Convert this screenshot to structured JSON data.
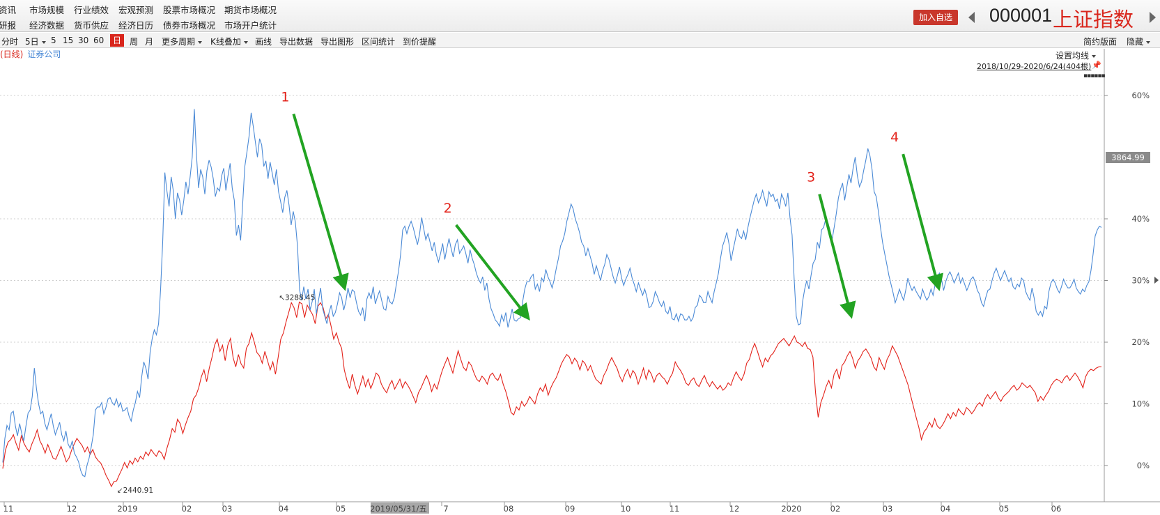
{
  "menu": [
    [
      "资讯",
      "市场规模",
      "行业绩效",
      "宏观预测",
      "股票市场概况",
      "期货市场概况"
    ],
    [
      "研报",
      "经济数据",
      "货币供应",
      "经济日历",
      "债券市场概况",
      "市场开户统计"
    ]
  ],
  "header": {
    "add_button": "加入自选",
    "code": "000001",
    "name": "上证指数"
  },
  "toolbar": {
    "items": [
      "分时",
      "5日",
      "5",
      "15",
      "30",
      "60",
      "日",
      "周",
      "月",
      "更多周期",
      "K线叠加",
      "画线",
      "导出数据",
      "导出图形",
      "区间统计",
      "到价提醒"
    ],
    "active": "日",
    "right_items": [
      "简约版面",
      "隐藏"
    ]
  },
  "legend": {
    "period": "(日线)",
    "overlay": "证券公司"
  },
  "chart_controls": {
    "ma_label": "设置均线",
    "range": "2018/10/29-2020/6/24(404根)"
  },
  "chart_data": {
    "type": "line",
    "ylabel_side": "right",
    "yticks": [
      "60%",
      "40%",
      "30%",
      "20%",
      "10%",
      "0%"
    ],
    "ylim": [
      -4,
      66
    ],
    "xticks": [
      "11",
      "12",
      "2019",
      "02",
      "03",
      "04",
      "05",
      "2019/05/31/五",
      "7",
      "08",
      "09",
      "10",
      "11",
      "12",
      "2020",
      "02",
      "03",
      "04",
      "05",
      "06"
    ],
    "grid": true,
    "price_label": "3864.99",
    "series": [
      {
        "name": "上证指数",
        "color": "#e3221a",
        "y": [
          -0.5,
          2.5,
          3.8,
          4.2,
          5.0,
          3.6,
          2.5,
          4.8,
          3.6,
          2.8,
          2.2,
          3.5,
          4.5,
          5.8,
          4.0,
          3.2,
          2.0,
          3.4,
          2.3,
          1.2,
          1.0,
          2.0,
          3.1,
          1.9,
          0.6,
          1.2,
          2.5,
          3.5,
          4.4,
          3.8,
          3.2,
          2.2,
          3.0,
          1.8,
          2.6,
          1.4,
          0.8,
          0.4,
          -0.5,
          -1.6,
          -2.4,
          -3.4,
          -2.6,
          -2.5,
          -1.5,
          -0.6,
          0.5,
          -0.4,
          0.8,
          0.2,
          1.2,
          0.6,
          1.5,
          1.0,
          2.2,
          1.6,
          2.6,
          2.0,
          1.5,
          2.4,
          2.0,
          1.0,
          2.8,
          4.2,
          6.0,
          5.4,
          7.5,
          6.8,
          5.2,
          6.6,
          7.8,
          8.8,
          10.8,
          11.4,
          12.6,
          14.4,
          15.5,
          13.6,
          15.8,
          17.5,
          19.5,
          20.5,
          18.5,
          19.5,
          17.0,
          19.5,
          20.6,
          17.5,
          16.0,
          18.0,
          16.5,
          15.8,
          19.0,
          19.8,
          21.5,
          20.0,
          18.3,
          17.8,
          16.6,
          18.5,
          17.0,
          15.5,
          16.8,
          14.8,
          17.5,
          20.5,
          21.5,
          23.3,
          24.8,
          26.4,
          25.6,
          24.0,
          26.5,
          26.2,
          24.0,
          26.0,
          25.2,
          24.5,
          23.0,
          25.8,
          26.4,
          25.6,
          23.8,
          24.5,
          22.6,
          20.5,
          21.5,
          20.0,
          19.0,
          15.5,
          13.8,
          12.5,
          14.8,
          13.0,
          11.6,
          13.0,
          14.5,
          12.8,
          14.0,
          12.5,
          13.6,
          15.0,
          14.6,
          13.2,
          12.4,
          11.8,
          13.0,
          13.8,
          12.4,
          13.2,
          14.0,
          12.6,
          13.6,
          13.0,
          12.2,
          11.2,
          10.2,
          11.8,
          12.6,
          13.6,
          14.6,
          13.6,
          12.0,
          13.2,
          12.4,
          14.0,
          15.4,
          16.5,
          17.5,
          16.2,
          15.0,
          16.8,
          18.6,
          17.2,
          15.9,
          15.4,
          16.8,
          16.2,
          15.0,
          14.0,
          13.6,
          14.5,
          14.0,
          13.2,
          14.6,
          15.0,
          14.2,
          13.8,
          14.8,
          13.2,
          12.0,
          10.4,
          8.6,
          8.2,
          9.5,
          9.0,
          10.4,
          9.6,
          10.2,
          11.2,
          10.6,
          10.0,
          11.6,
          12.6,
          12.0,
          13.2,
          11.4,
          12.6,
          13.5,
          14.2,
          15.3,
          16.5,
          17.3,
          18.0,
          17.6,
          16.5,
          17.4,
          16.8,
          15.5,
          17.0,
          16.5,
          15.4,
          16.2,
          15.0,
          14.0,
          13.6,
          13.2,
          14.6,
          15.4,
          16.6,
          17.5,
          16.6,
          15.8,
          14.5,
          13.6,
          14.8,
          15.6,
          14.2,
          15.4,
          14.8,
          13.2,
          14.4,
          15.8,
          14.0,
          15.5,
          14.8,
          13.5,
          14.6,
          15.0,
          14.4,
          14.0,
          13.2,
          14.2,
          15.0,
          16.8,
          16.0,
          15.4,
          14.6,
          13.4,
          13.0,
          13.8,
          14.2,
          13.2,
          12.8,
          13.8,
          14.6,
          13.5,
          12.8,
          13.6,
          13.0,
          12.4,
          13.0,
          12.2,
          12.6,
          13.4,
          13.0,
          14.2,
          15.2,
          14.4,
          13.8,
          14.8,
          16.6,
          17.2,
          18.7,
          19.8,
          18.6,
          17.2,
          16.0,
          17.4,
          16.8,
          17.8,
          18.2,
          19.0,
          19.8,
          20.2,
          20.6,
          20.0,
          19.4,
          20.2,
          21.0,
          20.0,
          19.8,
          19.3,
          20.0,
          19.0,
          18.8,
          17.6,
          11.8,
          7.8,
          10.2,
          11.4,
          12.8,
          13.8,
          12.6,
          14.8,
          15.6,
          14.0,
          16.2,
          16.8,
          17.8,
          18.5,
          17.4,
          15.8,
          17.0,
          17.6,
          18.5,
          18.9,
          18.2,
          17.4,
          16.0,
          15.4,
          17.5,
          16.5,
          15.6,
          17.2,
          18.0,
          19.4,
          18.6,
          17.8,
          16.6,
          15.4,
          14.2,
          13.0,
          11.2,
          9.5,
          7.8,
          6.2,
          4.2,
          5.5,
          6.0,
          7.0,
          6.2,
          7.6,
          6.4,
          6.0,
          6.6,
          7.4,
          8.4,
          7.6,
          8.6,
          8.0,
          9.2,
          8.6,
          8.2,
          9.4,
          9.0,
          8.4,
          9.0,
          9.8,
          10.2,
          9.6,
          10.8,
          11.5,
          10.8,
          11.4,
          12.0,
          11.0,
          10.4,
          11.2,
          11.6,
          12.0,
          12.6,
          13.0,
          12.2,
          12.6,
          13.4,
          13.0,
          12.6,
          13.0,
          12.4,
          11.8,
          10.4,
          11.2,
          10.6,
          11.4,
          12.0,
          13.0,
          13.6,
          14.0,
          13.8,
          13.4,
          14.2,
          14.6,
          13.8,
          14.4,
          15.0,
          14.4,
          13.6,
          12.6,
          14.4,
          15.2,
          15.6,
          15.4,
          15.8,
          16.0,
          16.0
        ]
      },
      {
        "name": "证券公司",
        "color": "#4b8ad6",
        "y": [
          0.5,
          4.4,
          6.5,
          5.8,
          8.5,
          8.8,
          6.4,
          4.8,
          6.8,
          5.2,
          4.0,
          6.4,
          8.5,
          9.0,
          11.2,
          15.8,
          12.5,
          10.0,
          8.4,
          8.8,
          6.8,
          5.8,
          7.2,
          8.4,
          6.4,
          5.0,
          6.0,
          7.0,
          5.0,
          4.0,
          5.6,
          3.5,
          2.8,
          4.0,
          2.0,
          1.4,
          0.6,
          -0.8,
          -1.6,
          -1.8,
          0.0,
          1.2,
          3.0,
          5.0,
          9.0,
          9.5,
          9.5,
          10.2,
          8.4,
          9.4,
          10.8,
          11.0,
          10.2,
          9.8,
          10.8,
          9.5,
          10.2,
          8.8,
          9.0,
          9.4,
          8.0,
          7.2,
          9.0,
          10.2,
          12.0,
          11.0,
          14.4,
          16.8,
          15.8,
          14.0,
          18.4,
          20.6,
          22.0,
          21.2,
          23.0,
          28.8,
          36.5,
          47.5,
          44.5,
          42.0,
          46.8,
          44.6,
          40.0,
          44.2,
          43.0,
          40.6,
          43.0,
          46.0,
          44.0,
          46.8,
          50.0,
          57.8,
          50.5,
          45.0,
          48.0,
          46.8,
          44.0,
          47.8,
          49.5,
          48.4,
          46.5,
          43.6,
          45.0,
          44.5,
          47.0,
          48.2,
          44.6,
          47.0,
          49.0,
          45.0,
          43.0,
          37.3,
          39.0,
          36.5,
          42.6,
          48.5,
          50.8,
          53.4,
          57.2,
          55.0,
          52.5,
          50.0,
          53.0,
          52.0,
          48.5,
          49.4,
          46.5,
          49.2,
          47.4,
          45.5,
          48.0,
          44.4,
          42.8,
          41.0,
          43.5,
          44.6,
          42.2,
          39.0,
          41.2,
          39.5,
          35.6,
          28.5,
          26.8,
          29.0,
          27.0,
          28.6,
          25.2,
          26.6,
          28.6,
          24.6,
          26.8,
          28.8,
          25.4,
          24.2,
          23.0,
          24.8,
          26.0,
          24.2,
          24.8,
          26.2,
          28.0,
          27.2,
          25.2,
          26.6,
          28.8,
          27.2,
          28.5,
          28.2,
          26.5,
          25.0,
          24.4,
          25.6,
          23.4,
          27.0,
          28.0,
          27.0,
          29.0,
          26.2,
          27.4,
          28.3,
          26.8,
          25.4,
          25.2,
          27.4,
          26.5,
          26.2,
          27.2,
          29.4,
          31.5,
          34.2,
          38.2,
          38.8,
          37.6,
          38.8,
          39.6,
          38.6,
          37.2,
          35.8,
          37.5,
          40.2,
          38.4,
          36.6,
          37.6,
          36.2,
          34.8,
          36.2,
          34.2,
          33.0,
          34.4,
          36.0,
          33.4,
          35.2,
          36.8,
          35.2,
          33.8,
          35.8,
          36.6,
          34.4,
          35.0,
          35.6,
          34.4,
          32.8,
          35.0,
          33.6,
          32.6,
          31.2,
          30.2,
          29.6,
          30.6,
          28.4,
          29.6,
          27.0,
          25.4,
          24.6,
          23.6,
          23.2,
          22.6,
          24.4,
          23.4,
          24.8,
          22.4,
          23.8,
          25.4,
          23.6,
          23.4,
          23.8,
          24.0,
          26.6,
          28.6,
          29.8,
          29.8,
          30.6,
          31.0,
          28.6,
          29.4,
          28.2,
          30.4,
          29.8,
          31.8,
          30.6,
          29.8,
          28.8,
          30.2,
          32.0,
          33.6,
          35.6,
          36.4,
          37.6,
          39.6,
          41.0,
          42.4,
          41.6,
          40.0,
          39.0,
          37.8,
          36.2,
          35.6,
          34.0,
          35.2,
          34.0,
          32.8,
          31.0,
          32.4,
          31.2,
          30.0,
          31.6,
          32.6,
          34.2,
          33.4,
          32.0,
          30.6,
          29.6,
          30.8,
          32.2,
          30.4,
          29.2,
          30.2,
          31.0,
          32.0,
          30.4,
          29.4,
          28.2,
          29.6,
          28.6,
          27.6,
          28.6,
          27.4,
          25.6,
          25.8,
          26.6,
          28.2,
          27.4,
          26.4,
          25.8,
          26.6,
          25.0,
          24.6,
          25.8,
          23.8,
          23.6,
          24.6,
          23.4,
          24.6,
          24.4,
          23.6,
          23.6,
          24.2,
          23.4,
          24.0,
          25.6,
          26.0,
          27.6,
          27.2,
          26.4,
          26.4,
          28.2,
          27.2,
          26.4,
          28.2,
          29.6,
          31.2,
          33.6,
          35.6,
          36.6,
          37.8,
          36.0,
          33.2,
          35.0,
          36.6,
          38.4,
          37.2,
          36.8,
          38.0,
          36.6,
          38.6,
          40.2,
          41.6,
          43.0,
          44.0,
          42.6,
          43.4,
          44.6,
          43.2,
          42.0,
          44.4,
          43.6,
          44.0,
          42.8,
          43.2,
          41.6,
          44.0,
          43.2,
          42.0,
          44.2,
          40.2,
          37.4,
          30.2,
          24.2,
          22.8,
          23.0,
          26.6,
          28.6,
          30.0,
          28.6,
          30.8,
          32.8,
          33.4,
          36.2,
          35.2,
          38.2,
          38.6,
          40.0,
          39.4,
          38.2,
          36.6,
          38.6,
          40.8,
          43.4,
          44.8,
          45.8,
          43.0,
          45.2,
          47.2,
          45.8,
          48.2,
          50.0,
          47.0,
          45.2,
          46.0,
          47.8,
          49.4,
          51.4,
          50.2,
          48.0,
          44.4,
          43.6,
          41.2,
          38.6,
          36.2,
          34.4,
          32.6,
          30.8,
          29.4,
          28.0,
          26.4,
          27.4,
          28.6,
          27.6,
          26.8,
          28.4,
          30.4,
          29.2,
          28.4,
          29.0,
          28.2,
          27.6,
          27.0,
          28.6,
          27.6,
          26.8,
          27.4,
          28.6,
          27.6,
          29.4,
          30.6,
          31.2,
          30.2,
          28.4,
          29.8,
          30.8,
          31.4,
          30.6,
          29.6,
          30.4,
          31.2,
          29.6,
          30.4,
          29.4,
          28.4,
          29.2,
          30.2,
          30.6,
          29.8,
          28.4,
          27.8,
          26.4,
          25.8,
          27.2,
          28.4,
          28.6,
          30.0,
          31.2,
          32.0,
          31.0,
          30.0,
          30.8,
          31.6,
          30.6,
          29.8,
          30.4,
          29.0,
          28.6,
          29.4,
          29.0,
          30.4,
          30.0,
          28.2,
          27.4,
          26.8,
          28.8,
          27.2,
          25.0,
          24.4,
          25.0,
          24.2,
          25.8,
          25.4,
          28.2,
          29.6,
          30.2,
          29.6,
          28.6,
          28.0,
          29.0,
          30.2,
          29.4,
          28.8,
          28.8,
          29.4,
          30.2,
          28.8,
          28.2,
          27.8,
          28.6,
          28.2,
          29.2,
          29.8,
          31.6,
          34.2,
          37.2,
          38.2,
          38.8,
          38.6
        ]
      }
    ],
    "annotations": [
      {
        "label": "1",
        "from": [
          0.2647,
          57.0
        ],
        "to": [
          0.3099,
          29.5
        ]
      },
      {
        "label": "2",
        "from": [
          0.4126,
          39.0
        ],
        "to": [
          0.4756,
          24.5
        ]
      },
      {
        "label": "3",
        "from": [
          0.7433,
          44.0
        ],
        "to": [
          0.7711,
          25.0
        ]
      },
      {
        "label": "4",
        "from": [
          0.8194,
          50.5
        ],
        "to": [
          0.8508,
          29.5
        ]
      }
    ],
    "markers": [
      {
        "label": "3288.45",
        "series": "上证指数",
        "value": 26.4
      },
      {
        "label": "2440.91",
        "series": "上证指数",
        "value": -3.4
      }
    ]
  }
}
